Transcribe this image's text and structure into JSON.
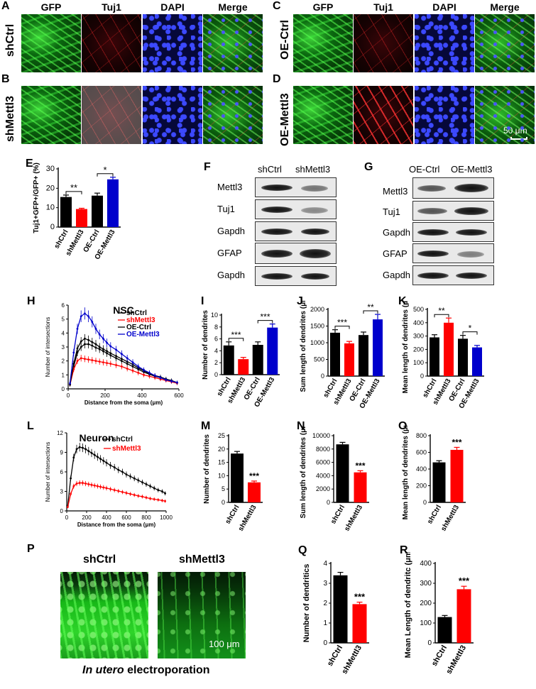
{
  "panel_labels": {
    "A": "A",
    "B": "B",
    "C": "C",
    "D": "D",
    "E": "E",
    "F": "F",
    "G": "G",
    "H": "H",
    "I": "I",
    "J": "J",
    "K": "K",
    "L": "L",
    "M": "M",
    "N": "N",
    "O": "O",
    "P": "P",
    "Q": "Q",
    "R": "R"
  },
  "columns": {
    "gfp": "GFP",
    "tuj1": "Tuj1",
    "dapi": "DAPI",
    "merge": "Merge"
  },
  "rows": {
    "shctrl": "shCtrl",
    "shmettl3": "shMettl3",
    "oectrl": "OE-Ctrl",
    "oemettl3": "OE-Mettl3"
  },
  "scalebars": {
    "micro": "50 μm",
    "p": "100 μm"
  },
  "blots": {
    "F": {
      "conditions": [
        "shCtrl",
        "shMettl3"
      ],
      "proteins": [
        "Mettl3",
        "Tuj1",
        "Gapdh",
        "GFAP",
        "Gapdh"
      ]
    },
    "G": {
      "conditions": [
        "OE-Ctrl",
        "OE-Mettl3"
      ],
      "proteins": [
        "Mettl3",
        "Tuj1",
        "Gapdh",
        "GFAP",
        "Gapdh"
      ]
    }
  },
  "panel_P": {
    "left_title": "shCtrl",
    "right_title": "shMettl3",
    "caption_italic": "In utero",
    "caption_rest": " electroporation"
  },
  "colors": {
    "shCtrl": "#000000",
    "shMettl3": "#ff0000",
    "OE-Ctrl": "#000000",
    "OE-Mettl3": "#0000cc"
  },
  "chart_data": [
    {
      "id": "E",
      "type": "bar",
      "categories": [
        "shCtrl",
        "shMettl3",
        "OE-Ctrl",
        "OE-Mettl3"
      ],
      "values": [
        15.5,
        9.3,
        16.2,
        24.6
      ],
      "errors": [
        1.0,
        0.4,
        1.3,
        1.1
      ],
      "colors": [
        "#000000",
        "#ff0000",
        "#000000",
        "#0000cc"
      ],
      "ylabel": "Tuj1+GFP+/GFP+ (%)",
      "ylim": [
        0,
        30
      ],
      "yticks": [
        0,
        10,
        20,
        30
      ],
      "significance": [
        {
          "between": [
            0,
            1
          ],
          "label": "**"
        },
        {
          "between": [
            2,
            3
          ],
          "label": "*"
        }
      ]
    },
    {
      "id": "H",
      "type": "line",
      "title": "NSC",
      "xlabel": "Distance from the soma (μm)",
      "ylabel": "Number of intersections",
      "xlim": [
        0,
        600
      ],
      "ylim": [
        0,
        6
      ],
      "xticks": [
        0,
        200,
        400,
        600
      ],
      "yticks": [
        0,
        1,
        2,
        3,
        4,
        5,
        6
      ],
      "series": [
        {
          "name": "shCtrl",
          "color": "#000000",
          "x": [
            10,
            30,
            50,
            70,
            90,
            110,
            130,
            150,
            170,
            190,
            210,
            230,
            260,
            290,
            320,
            350,
            380,
            410,
            440,
            470,
            500,
            530,
            560,
            590
          ],
          "y": [
            0.3,
            1.6,
            2.6,
            3.0,
            3.2,
            3.2,
            3.1,
            2.95,
            2.85,
            2.7,
            2.55,
            2.4,
            2.2,
            2.0,
            1.8,
            1.6,
            1.4,
            1.2,
            1.05,
            0.9,
            0.8,
            0.7,
            0.55,
            0.45
          ]
        },
        {
          "name": "shMettl3",
          "color": "#ff0000",
          "x": [
            10,
            30,
            50,
            70,
            90,
            110,
            130,
            150,
            170,
            190,
            210,
            230,
            260,
            290,
            320,
            350,
            380,
            410,
            440,
            470,
            500,
            530,
            560,
            590
          ],
          "y": [
            0.3,
            1.4,
            2.0,
            2.2,
            2.15,
            2.1,
            2.05,
            2.0,
            1.95,
            1.9,
            1.85,
            1.8,
            1.7,
            1.6,
            1.45,
            1.3,
            1.15,
            1.0,
            0.9,
            0.8,
            0.7,
            0.6,
            0.5,
            0.4
          ]
        },
        {
          "name": "OE-Ctrl",
          "color": "#000000",
          "x": [
            10,
            30,
            50,
            70,
            90,
            110,
            130,
            150,
            170,
            190,
            210,
            230,
            260,
            290,
            320,
            350,
            380,
            410,
            440,
            470,
            500,
            530,
            560,
            590
          ],
          "y": [
            0.3,
            1.8,
            2.9,
            3.4,
            3.6,
            3.5,
            3.35,
            3.2,
            3.0,
            2.85,
            2.7,
            2.55,
            2.35,
            2.15,
            1.95,
            1.75,
            1.5,
            1.3,
            1.1,
            0.95,
            0.85,
            0.7,
            0.6,
            0.45
          ]
        },
        {
          "name": "OE-Mettl3",
          "color": "#0000cc",
          "x": [
            10,
            30,
            50,
            70,
            90,
            110,
            130,
            150,
            170,
            190,
            210,
            230,
            260,
            290,
            320,
            350,
            380,
            410,
            440,
            470,
            500,
            530,
            560,
            590
          ],
          "y": [
            0.4,
            2.6,
            4.3,
            5.2,
            5.4,
            5.2,
            4.8,
            4.3,
            3.9,
            3.6,
            3.3,
            3.05,
            2.8,
            2.5,
            2.2,
            1.9,
            1.6,
            1.35,
            1.15,
            0.95,
            0.8,
            0.65,
            0.55,
            0.45
          ]
        }
      ]
    },
    {
      "id": "I",
      "type": "bar",
      "categories": [
        "shCtrl",
        "shMettl3",
        "OE-Ctrl",
        "OE-Mettl3"
      ],
      "values": [
        4.9,
        2.6,
        5.0,
        7.9
      ],
      "errors": [
        0.6,
        0.3,
        0.5,
        0.6
      ],
      "colors": [
        "#000000",
        "#ff0000",
        "#000000",
        "#0000cc"
      ],
      "ylabel": "Number of dendrites",
      "ylim": [
        0,
        10
      ],
      "yticks": [
        0,
        2,
        4,
        6,
        8,
        10
      ],
      "significance": [
        {
          "between": [
            0,
            1
          ],
          "label": "***"
        },
        {
          "between": [
            2,
            3
          ],
          "label": "***"
        }
      ]
    },
    {
      "id": "J",
      "type": "bar",
      "categories": [
        "shCtrl",
        "shMettl3",
        "OE-Ctrl",
        "OE-Mettl3"
      ],
      "values": [
        1300,
        980,
        1230,
        1700
      ],
      "errors": [
        90,
        60,
        90,
        150
      ],
      "colors": [
        "#000000",
        "#ff0000",
        "#000000",
        "#0000cc"
      ],
      "ylabel": "Sum length of dendrites (μm)",
      "ylim": [
        0,
        2000
      ],
      "yticks": [
        0,
        500,
        1000,
        1500,
        2000
      ],
      "significance": [
        {
          "between": [
            0,
            1
          ],
          "label": "***"
        },
        {
          "between": [
            2,
            3
          ],
          "label": "**"
        }
      ]
    },
    {
      "id": "K",
      "type": "bar",
      "categories": [
        "shCtrl",
        "shMettl3",
        "OE-Ctrl",
        "OE-Mettl3"
      ],
      "values": [
        290,
        400,
        280,
        215
      ],
      "errors": [
        20,
        35,
        25,
        15
      ],
      "colors": [
        "#000000",
        "#ff0000",
        "#000000",
        "#0000cc"
      ],
      "ylabel": "Mean length of dendrites (μm)",
      "ylim": [
        0,
        500
      ],
      "yticks": [
        0,
        100,
        200,
        300,
        400,
        500
      ],
      "significance": [
        {
          "between": [
            0,
            1
          ],
          "label": "**"
        },
        {
          "between": [
            2,
            3
          ],
          "label": "*"
        }
      ]
    },
    {
      "id": "L",
      "type": "line",
      "title": "Neuron",
      "xlabel": "Distance from the soma (μm)",
      "ylabel": "Number of intersections",
      "xlim": [
        0,
        1000
      ],
      "ylim": [
        0,
        12
      ],
      "xticks": [
        0,
        200,
        400,
        600,
        800,
        1000
      ],
      "yticks": [
        0,
        3,
        6,
        9,
        12
      ],
      "series": [
        {
          "name": "shCtrl",
          "color": "#000000",
          "x": [
            10,
            40,
            70,
            100,
            130,
            160,
            190,
            220,
            250,
            280,
            310,
            340,
            370,
            400,
            440,
            480,
            520,
            560,
            600,
            640,
            680,
            720,
            760,
            800,
            840,
            880,
            920,
            960,
            990
          ],
          "y": [
            0.8,
            5.0,
            8.2,
            9.5,
            9.8,
            9.7,
            9.5,
            9.2,
            8.9,
            8.6,
            8.3,
            8.0,
            7.7,
            7.4,
            7.0,
            6.7,
            6.3,
            6.0,
            5.6,
            5.3,
            5.0,
            4.7,
            4.4,
            4.1,
            3.8,
            3.5,
            3.2,
            3.0,
            2.7
          ]
        },
        {
          "name": "shMettl3",
          "color": "#ff0000",
          "x": [
            10,
            40,
            70,
            100,
            130,
            160,
            190,
            220,
            250,
            280,
            310,
            340,
            370,
            400,
            440,
            480,
            520,
            560,
            600,
            640,
            680,
            720,
            760,
            800,
            840,
            880,
            920,
            960,
            990
          ],
          "y": [
            0.6,
            2.6,
            3.8,
            4.2,
            4.3,
            4.3,
            4.2,
            4.1,
            4.0,
            3.9,
            3.8,
            3.7,
            3.6,
            3.5,
            3.35,
            3.2,
            3.05,
            2.9,
            2.75,
            2.6,
            2.45,
            2.3,
            2.2,
            2.05,
            1.9,
            1.8,
            1.7,
            1.6,
            1.5
          ]
        }
      ]
    },
    {
      "id": "M",
      "type": "bar",
      "categories": [
        "shCtrl",
        "shMettl3"
      ],
      "values": [
        18.3,
        7.5
      ],
      "errors": [
        0.8,
        0.5
      ],
      "colors": [
        "#000000",
        "#ff0000"
      ],
      "ylabel": "Number of dendrites",
      "ylim": [
        0,
        25
      ],
      "yticks": [
        0,
        5,
        10,
        15,
        20,
        25
      ],
      "significance": [
        {
          "on": 1,
          "label": "***"
        }
      ]
    },
    {
      "id": "N",
      "type": "bar",
      "categories": [
        "shCtrl",
        "shMettl3"
      ],
      "values": [
        8700,
        4500
      ],
      "errors": [
        300,
        250
      ],
      "colors": [
        "#000000",
        "#ff0000"
      ],
      "ylabel": "Sum length of dendrites (μm)",
      "ylim": [
        0,
        10000
      ],
      "yticks": [
        0,
        2000,
        4000,
        6000,
        8000,
        10000
      ],
      "significance": [
        {
          "on": 1,
          "label": "***"
        }
      ]
    },
    {
      "id": "O",
      "type": "bar",
      "categories": [
        "shCtrl",
        "shMettl3"
      ],
      "values": [
        480,
        630
      ],
      "errors": [
        20,
        30
      ],
      "colors": [
        "#000000",
        "#ff0000"
      ],
      "ylabel": "Mean length of dendrites (μm)",
      "ylim": [
        0,
        800
      ],
      "yticks": [
        0,
        200,
        400,
        600,
        800
      ],
      "significance": [
        {
          "on": 1,
          "label": "***"
        }
      ]
    },
    {
      "id": "Q",
      "type": "bar",
      "categories": [
        "shCtrl",
        "shMettl3"
      ],
      "values": [
        3.4,
        1.95
      ],
      "errors": [
        0.15,
        0.1
      ],
      "colors": [
        "#000000",
        "#ff0000"
      ],
      "ylabel": "Number of dendritics",
      "ylim": [
        0,
        4
      ],
      "yticks": [
        0,
        1,
        2,
        3,
        4
      ],
      "significance": [
        {
          "on": 1,
          "label": "***"
        }
      ]
    },
    {
      "id": "R",
      "type": "bar",
      "categories": [
        "shCtrl",
        "shMettl3"
      ],
      "values": [
        130,
        270
      ],
      "errors": [
        8,
        15
      ],
      "colors": [
        "#000000",
        "#ff0000"
      ],
      "ylabel": "Mean Length of dendritc (μm)",
      "ylim": [
        0,
        400
      ],
      "yticks": [
        0,
        100,
        200,
        300,
        400
      ],
      "significance": [
        {
          "on": 1,
          "label": "***"
        }
      ]
    }
  ]
}
